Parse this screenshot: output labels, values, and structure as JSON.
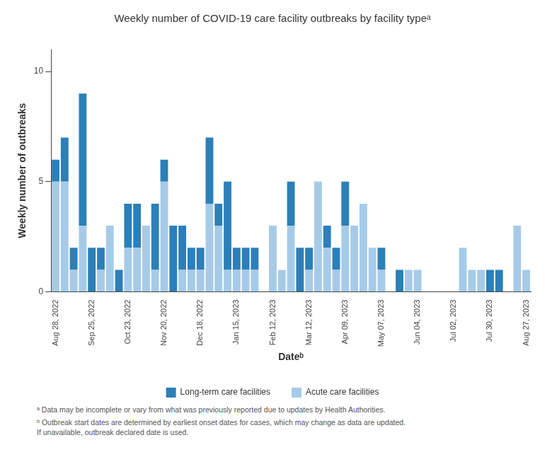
{
  "chart_data": {
    "type": "bar",
    "title": "Weekly number of COVID-19 care facility outbreaks by facility typeᵃ",
    "x_label": "Dateᵇ",
    "y_label": "Weekly number of outbreaks",
    "categories": [
      "Aug 28, 2022",
      null,
      null,
      null,
      "Sep 25, 2022",
      null,
      null,
      null,
      "Oct 23, 2022",
      null,
      null,
      null,
      "Nov 20, 2022",
      null,
      null,
      null,
      "Dec 18, 2022",
      null,
      null,
      null,
      "Jan 15, 2023",
      null,
      null,
      null,
      "Feb 12, 2023",
      null,
      null,
      null,
      "Mar 12, 2023",
      null,
      null,
      null,
      "Apr 09, 2023",
      null,
      null,
      null,
      "May 07, 2023",
      null,
      null,
      null,
      "Jun 04, 2023",
      null,
      null,
      null,
      "Jul 02, 2023",
      null,
      null,
      null,
      "Jul 30, 2023",
      null,
      null,
      null,
      "Aug 27, 2023"
    ],
    "series": [
      {
        "name": "Long-term care facilities",
        "color": "#2c7fb8",
        "values": [
          1,
          2,
          1,
          6,
          2,
          1,
          0,
          1,
          2,
          2,
          0,
          3,
          1,
          3,
          2,
          1,
          1,
          3,
          1,
          4,
          1,
          1,
          1,
          0,
          0,
          0,
          2,
          2,
          1,
          0,
          1,
          1,
          2,
          0,
          0,
          0,
          1,
          0,
          1,
          0,
          0,
          0,
          0,
          0,
          0,
          0,
          0,
          0,
          1,
          1,
          0,
          0,
          0
        ]
      },
      {
        "name": "Acute care facilities",
        "color": "#a6cbe8",
        "values": [
          5,
          5,
          1,
          3,
          0,
          1,
          3,
          0,
          2,
          2,
          3,
          1,
          5,
          0,
          1,
          1,
          1,
          4,
          3,
          1,
          1,
          1,
          1,
          0,
          3,
          1,
          3,
          0,
          1,
          5,
          2,
          1,
          3,
          3,
          4,
          2,
          1,
          0,
          0,
          1,
          1,
          0,
          0,
          0,
          0,
          2,
          1,
          1,
          0,
          0,
          0,
          3,
          1
        ]
      }
    ],
    "stacked": true,
    "ylim": [
      0,
      11
    ],
    "yticks": [
      0,
      5,
      10
    ],
    "grid": false,
    "legend": "bottom",
    "notes": [
      "ᵃ Data may be incomplete or vary from what was previously reported due to updates by Health Authorities.",
      "ᵇ Outbreak start dates are determined by earliest onset dates for cases, which may change as data are updated.\nIf unavailable, outbreak declared date is used."
    ]
  }
}
